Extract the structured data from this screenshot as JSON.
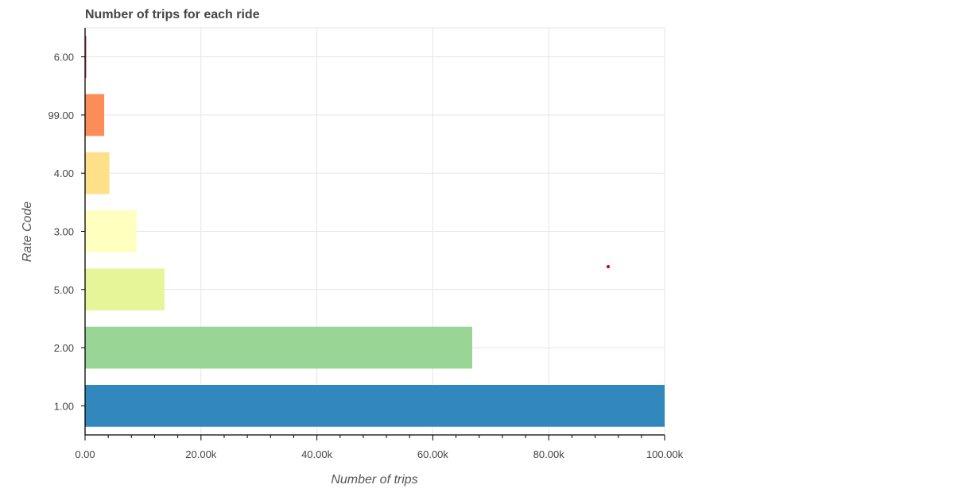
{
  "chart_data": {
    "type": "bar",
    "orientation": "horizontal",
    "title": "Number of trips for each ride",
    "xlabel": "Number of trips",
    "ylabel": "Rate Code",
    "categories": [
      "1.00",
      "2.00",
      "5.00",
      "3.00",
      "4.00",
      "99.00",
      "6.00"
    ],
    "values": [
      100000,
      66800,
      13700,
      8900,
      4200,
      3300,
      200
    ],
    "colors": [
      "#3288bd",
      "#99d594",
      "#e6f598",
      "#ffffbf",
      "#fee08b",
      "#fc8d59",
      "#d53e4f"
    ],
    "xlim": [
      0,
      100000
    ],
    "x_ticks": [
      0,
      20000,
      40000,
      60000,
      80000,
      100000
    ],
    "x_tick_labels": [
      "0.00",
      "20.00k",
      "40.00k",
      "60.00k",
      "80.00k",
      "100.00k"
    ],
    "grid": true
  }
}
